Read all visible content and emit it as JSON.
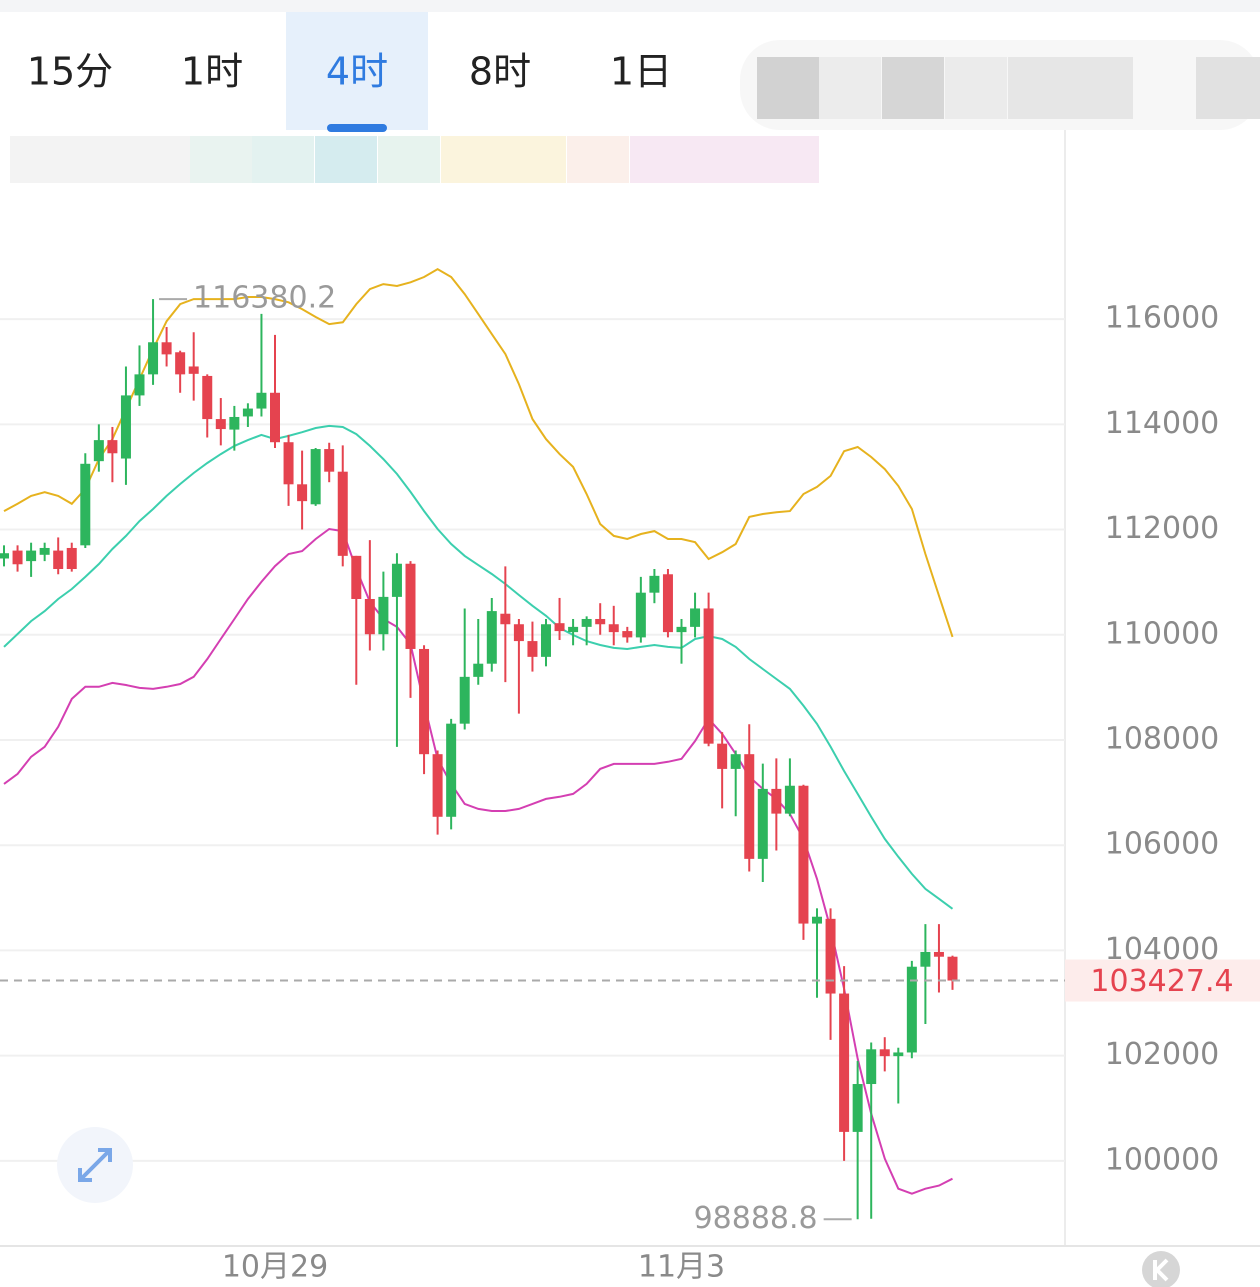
{
  "tabs": [
    {
      "label": "15分"
    },
    {
      "label": "1时"
    },
    {
      "label": "4时",
      "active": true
    },
    {
      "label": "8时"
    },
    {
      "label": "1日"
    }
  ],
  "chart_data": {
    "type": "candlestick",
    "categories": [
      null,
      null,
      null,
      null,
      null,
      null,
      null,
      null,
      null,
      null,
      null,
      null,
      null,
      null,
      null,
      null,
      null,
      null,
      null,
      null,
      "10月29",
      null,
      null,
      null,
      null,
      null,
      null,
      null,
      null,
      null,
      null,
      null,
      null,
      null,
      null,
      null,
      null,
      null,
      null,
      null,
      null,
      null,
      null,
      null,
      null,
      null,
      null,
      null,
      null,
      null,
      "11月3",
      null,
      null,
      null,
      null,
      null,
      null,
      null,
      null,
      null,
      null,
      null,
      null,
      null,
      null,
      null,
      null,
      null,
      null,
      null,
      null
    ],
    "open": [
      111450,
      111600,
      111400,
      111520,
      111600,
      111650,
      111700,
      113300,
      113700,
      113350,
      114550,
      114950,
      115560,
      115370,
      115100,
      114920,
      114100,
      113900,
      114150,
      114300,
      114600,
      113660,
      112860,
      112480,
      113530,
      113100,
      111500,
      110680,
      110010,
      110720,
      111350,
      109730,
      107730,
      106540,
      108310,
      109200,
      109450,
      110400,
      110200,
      109880,
      109580,
      110220,
      110050,
      110150,
      110300,
      110200,
      110070,
      109950,
      110800,
      111150,
      110050,
      110150,
      110500,
      107930,
      107450,
      107730,
      105740,
      107070,
      106600,
      107130,
      104510,
      104600,
      103180,
      100550,
      101460,
      102120,
      101990,
      102060,
      103690,
      103970,
      103880
    ],
    "high": [
      111700,
      111700,
      111750,
      111750,
      111850,
      111750,
      113450,
      114000,
      113950,
      115100,
      115500,
      116380.2,
      115850,
      115400,
      115750,
      114950,
      114500,
      114350,
      114400,
      116100,
      115700,
      113800,
      113500,
      113550,
      113650,
      113600,
      111500,
      111800,
      111200,
      111550,
      111400,
      109800,
      107800,
      108400,
      110500,
      110300,
      110700,
      111300,
      110300,
      110250,
      110300,
      110700,
      110300,
      110350,
      110600,
      110550,
      110150,
      111100,
      111250,
      111250,
      110300,
      110800,
      110800,
      108150,
      107800,
      108300,
      107550,
      107650,
      107650,
      107150,
      104800,
      104800,
      103700,
      101900,
      102250,
      102350,
      102150,
      103800,
      104500,
      104500,
      103900
    ],
    "low": [
      111300,
      111200,
      111100,
      111400,
      111150,
      111200,
      111650,
      113100,
      112900,
      112850,
      114350,
      114750,
      115100,
      114600,
      114450,
      113750,
      113600,
      113500,
      113950,
      114150,
      113550,
      112450,
      112000,
      112450,
      112900,
      111300,
      109050,
      109700,
      109700,
      107870,
      108800,
      107350,
      106200,
      106300,
      108200,
      109050,
      109300,
      109100,
      108500,
      109300,
      109400,
      109900,
      109800,
      109800,
      110000,
      109800,
      109850,
      109850,
      110600,
      109950,
      109450,
      109950,
      107880,
      106700,
      106550,
      105500,
      105300,
      105900,
      106550,
      104200,
      103100,
      102300,
      100000,
      98888.8,
      98900,
      101700,
      101090,
      101950,
      102600,
      103200,
      103250
    ],
    "close": [
      111550,
      111340,
      111600,
      111650,
      111250,
      111250,
      113250,
      113700,
      113450,
      114550,
      114950,
      115560,
      115330,
      114950,
      114960,
      114100,
      113910,
      114140,
      114300,
      114600,
      113660,
      112860,
      112540,
      113530,
      113100,
      111500,
      110680,
      110010,
      110720,
      111350,
      109730,
      107730,
      106540,
      108310,
      109200,
      109450,
      110450,
      110200,
      109880,
      109580,
      110200,
      110070,
      110150,
      110300,
      110200,
      110050,
      109950,
      110800,
      111120,
      110050,
      110150,
      110500,
      107930,
      107450,
      107730,
      105740,
      107070,
      106600,
      107130,
      104510,
      104640,
      103180,
      100550,
      101460,
      102120,
      101990,
      102060,
      103690,
      103970,
      103880,
      103427.4
    ],
    "up_color": "#2db55d",
    "down_color": "#e5434f",
    "bands": [
      {
        "color": "#e6b21e",
        "values": [
          112350,
          112490,
          112640,
          112710,
          112640,
          112490,
          112770,
          113340,
          113720,
          114290,
          114860,
          115430,
          115960,
          116285,
          116380,
          116380,
          116380,
          116380,
          116420,
          116420,
          116380,
          116320,
          116190,
          116040,
          115905,
          115940,
          116285,
          116570,
          116665,
          116630,
          116700,
          116800,
          116950,
          116800,
          116475,
          116095,
          115715,
          115335,
          114765,
          114100,
          113720,
          113435,
          113190,
          112675,
          112105,
          111880,
          111820,
          111915,
          111970,
          111820,
          111820,
          111760,
          111440,
          111570,
          111725,
          112240,
          112295,
          112330,
          112350,
          112675,
          112810,
          113020,
          113490,
          113570,
          113380,
          113150,
          112830,
          112390,
          111535,
          110740,
          109960
        ]
      },
      {
        "color": "#3ccfae",
        "values": [
          109770,
          110015,
          110260,
          110450,
          110680,
          110870,
          111100,
          111345,
          111630,
          111880,
          112160,
          112390,
          112640,
          112865,
          113075,
          113265,
          113435,
          113590,
          113700,
          113800,
          113720,
          113780,
          113850,
          113930,
          113970,
          113950,
          113815,
          113590,
          113340,
          113055,
          112715,
          112350,
          112010,
          111725,
          111500,
          111325,
          111155,
          110965,
          110755,
          110550,
          110360,
          110130,
          109995,
          109880,
          109805,
          109750,
          109730,
          109770,
          109805,
          109770,
          109750,
          109920,
          109975,
          109920,
          109770,
          109540,
          109350,
          109160,
          108970,
          108650,
          108305,
          107870,
          107410,
          106975,
          106540,
          106120,
          105780,
          105455,
          105170,
          104980,
          104790
        ]
      },
      {
        "color": "#d43fb2",
        "values": [
          107165,
          107355,
          107680,
          107870,
          108250,
          108780,
          109010,
          109010,
          109085,
          109045,
          108990,
          108970,
          109010,
          109065,
          109200,
          109540,
          109920,
          110300,
          110680,
          111005,
          111305,
          111535,
          111590,
          111820,
          112010,
          111970,
          111250,
          110625,
          110300,
          110150,
          109825,
          108685,
          107640,
          107165,
          106785,
          106690,
          106650,
          106650,
          106690,
          106785,
          106880,
          106920,
          106975,
          107165,
          107450,
          107545,
          107545,
          107545,
          107545,
          107585,
          107640,
          107980,
          108400,
          108115,
          107735,
          107300,
          107070,
          106880,
          106595,
          106120,
          105360,
          104410,
          103270,
          101940,
          100895,
          100040,
          99470,
          99375,
          99470,
          99530,
          99660
        ]
      }
    ],
    "ylim": [
      98400,
      119500
    ],
    "yticks": [
      100000,
      102000,
      104000,
      106000,
      108000,
      110000,
      112000,
      114000,
      116000
    ],
    "grid": true
  }
}
